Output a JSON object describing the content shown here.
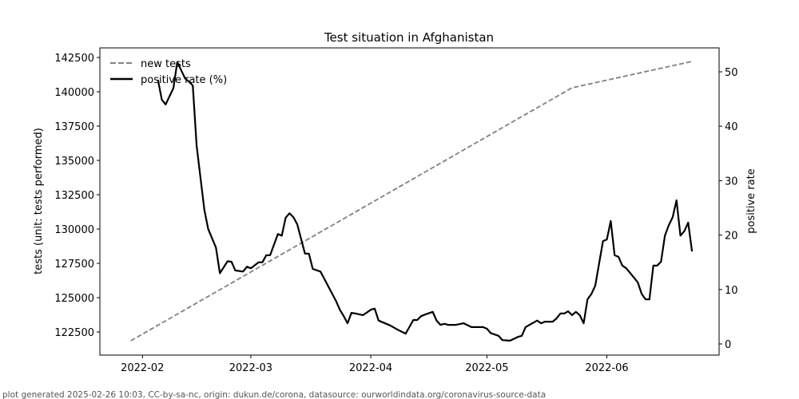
{
  "chart_data": {
    "type": "line",
    "title": "Test situation in Afghanistan",
    "xlabel": "",
    "ylabel_left": "tests (unit: tests performed)",
    "ylabel_right": "positive rate",
    "xlim": [
      "2022-01-21",
      "2022-06-30"
    ],
    "ylim_left": [
      120814,
      143198
    ],
    "ylim_right": [
      -2.05,
      54.4
    ],
    "x_ticks": [
      {
        "date": "2022-02-01",
        "label": "2022-02"
      },
      {
        "date": "2022-03-01",
        "label": "2022-03"
      },
      {
        "date": "2022-04-01",
        "label": "2022-04"
      },
      {
        "date": "2022-05-01",
        "label": "2022-05"
      },
      {
        "date": "2022-06-01",
        "label": "2022-06"
      }
    ],
    "y_ticks_left": [
      122500,
      125000,
      127500,
      130000,
      132500,
      135000,
      137500,
      140000,
      142500
    ],
    "y_ticks_right": [
      0,
      10,
      20,
      30,
      40,
      50
    ],
    "grid": false,
    "legend_position": "top-left",
    "series": [
      {
        "name": "new tests",
        "axis": "left",
        "color": "#808080",
        "style": "dashed",
        "x": [
          "2022-01-29",
          "2022-05-23",
          "2022-06-23"
        ],
        "y": [
          121860,
          140290,
          142210
        ]
      },
      {
        "name": "positive rate (%)",
        "axis": "right",
        "color": "#000000",
        "style": "solid",
        "x": [
          "2022-02-05",
          "2022-02-06",
          "2022-02-07",
          "2022-02-09",
          "2022-02-10",
          "2022-02-12",
          "2022-02-13",
          "2022-02-14",
          "2022-02-15",
          "2022-02-17",
          "2022-02-18",
          "2022-02-20",
          "2022-02-21",
          "2022-02-23",
          "2022-02-24",
          "2022-02-25",
          "2022-02-27",
          "2022-02-28",
          "2022-03-01",
          "2022-03-03",
          "2022-03-04",
          "2022-03-05",
          "2022-03-06",
          "2022-03-08",
          "2022-03-09",
          "2022-03-10",
          "2022-03-11",
          "2022-03-12",
          "2022-03-13",
          "2022-03-15",
          "2022-03-16",
          "2022-03-17",
          "2022-03-19",
          "2022-03-23",
          "2022-03-24",
          "2022-03-25",
          "2022-03-26",
          "2022-03-27",
          "2022-03-28",
          "2022-03-30",
          "2022-04-01",
          "2022-04-02",
          "2022-04-03",
          "2022-04-06",
          "2022-04-08",
          "2022-04-10",
          "2022-04-12",
          "2022-04-13",
          "2022-04-14",
          "2022-04-15",
          "2022-04-17",
          "2022-04-18",
          "2022-04-19",
          "2022-04-20",
          "2022-04-21",
          "2022-04-23",
          "2022-04-25",
          "2022-04-27",
          "2022-04-30",
          "2022-05-01",
          "2022-05-02",
          "2022-05-04",
          "2022-05-05",
          "2022-05-07",
          "2022-05-09",
          "2022-05-10",
          "2022-05-11",
          "2022-05-12",
          "2022-05-14",
          "2022-05-15",
          "2022-05-16",
          "2022-05-18",
          "2022-05-19",
          "2022-05-20",
          "2022-05-21",
          "2022-05-22",
          "2022-05-23",
          "2022-05-24",
          "2022-05-25",
          "2022-05-26",
          "2022-05-27",
          "2022-05-28",
          "2022-05-29",
          "2022-05-31",
          "2022-06-01",
          "2022-06-02",
          "2022-06-03",
          "2022-06-04",
          "2022-06-05",
          "2022-06-06",
          "2022-06-08",
          "2022-06-09",
          "2022-06-10",
          "2022-06-11",
          "2022-06-12",
          "2022-06-13",
          "2022-06-14",
          "2022-06-15",
          "2022-06-16",
          "2022-06-17",
          "2022-06-18",
          "2022-06-19",
          "2022-06-20",
          "2022-06-21",
          "2022-06-22",
          "2022-06-23"
        ],
        "y": [
          48.5,
          44.9,
          44,
          47,
          51.8,
          48.8,
          48.2,
          47.5,
          36.4,
          24.6,
          21.1,
          17.7,
          13,
          15.2,
          15.1,
          13.5,
          13.3,
          14.2,
          13.9,
          15,
          15,
          16.3,
          16.3,
          20.2,
          19.9,
          23.2,
          24,
          23.3,
          22,
          16.6,
          16.6,
          13.8,
          13.3,
          7.9,
          6.3,
          5.1,
          3.8,
          5.7,
          5.6,
          5.3,
          6.3,
          6.5,
          4.3,
          3.4,
          2.6,
          1.9,
          4.4,
          4.4,
          5.1,
          5.4,
          5.9,
          4.3,
          3.5,
          3.7,
          3.5,
          3.5,
          3.8,
          3.1,
          3.1,
          2.8,
          2,
          1.5,
          0.7,
          0.6,
          1.3,
          1.5,
          3.1,
          3.5,
          4.3,
          3.8,
          4.1,
          4.1,
          4.7,
          5.6,
          5.6,
          6,
          5.3,
          5.9,
          5.3,
          3.8,
          8.2,
          9.2,
          10.7,
          18.9,
          19.2,
          22.6,
          16.3,
          16,
          14.4,
          13.9,
          12.2,
          11.3,
          9.2,
          8.2,
          8.2,
          14.4,
          14.4,
          15.1,
          19.9,
          21.8,
          23.3,
          26.4,
          19.9,
          20.7,
          22.3,
          17
        ]
      }
    ]
  },
  "footer": "plot generated 2025-02-26 10:03, CC-by-sa-nc, origin: dukun.de/corona, datasource: ourworldindata.org/coronavirus-source-data"
}
